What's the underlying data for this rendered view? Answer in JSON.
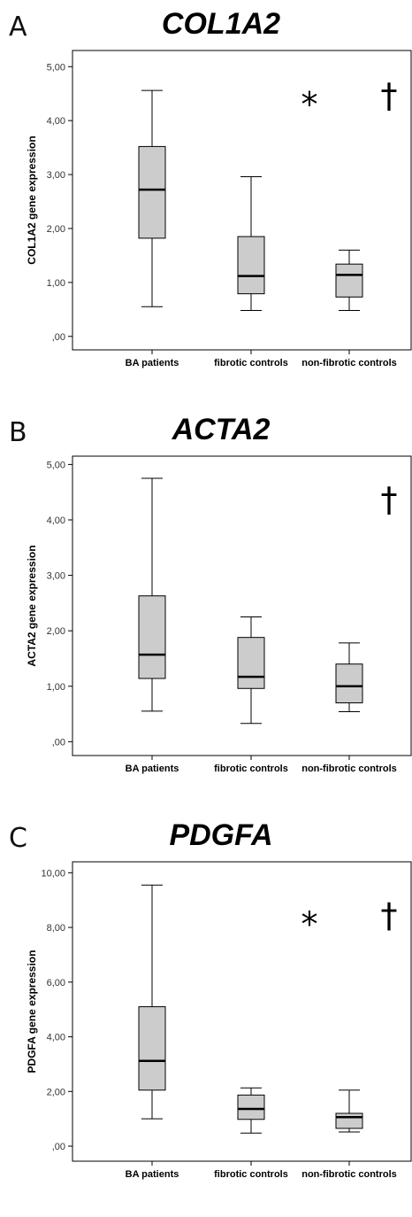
{
  "chart_data": [
    {
      "type": "box",
      "panel_label": "A",
      "title": "COL1A2",
      "ylabel": "COL1A2 gene expression",
      "ylim": [
        -0.25,
        5.3
      ],
      "y_ticks": [
        0,
        1,
        2,
        3,
        4,
        5
      ],
      "y_tick_labels": [
        ",00",
        "1,00",
        "2,00",
        "3,00",
        "4,00",
        "5,00"
      ],
      "categories": [
        "BA patients",
        "fibrotic controls",
        "non-fibrotic controls"
      ],
      "boxes": [
        {
          "category": "BA patients",
          "min": 0.55,
          "q1": 1.82,
          "median": 2.72,
          "q3": 3.52,
          "max": 4.56
        },
        {
          "category": "fibrotic controls",
          "min": 0.48,
          "q1": 0.79,
          "median": 1.12,
          "q3": 1.85,
          "max": 2.96
        },
        {
          "category": "non-fibrotic controls",
          "min": 0.48,
          "q1": 0.73,
          "median": 1.14,
          "q3": 1.34,
          "max": 1.6
        }
      ],
      "annotations": [
        {
          "text": "*",
          "x_category": 2,
          "offset": -0.45,
          "y": 4.45
        },
        {
          "text": "†",
          "x_category": 2,
          "offset": 0.45,
          "y": 4.45
        }
      ]
    },
    {
      "type": "box",
      "panel_label": "B",
      "title": "ACTA2",
      "ylabel": "ACTA2 gene expression",
      "ylim": [
        -0.25,
        5.15
      ],
      "y_ticks": [
        0,
        1,
        2,
        3,
        4,
        5
      ],
      "y_tick_labels": [
        ",00",
        "1,00",
        "2,00",
        "3,00",
        "4,00",
        "5,00"
      ],
      "categories": [
        "BA patients",
        "fibrotic controls",
        "non-fibrotic controls"
      ],
      "boxes": [
        {
          "category": "BA patients",
          "min": 0.55,
          "q1": 1.14,
          "median": 1.57,
          "q3": 2.63,
          "max": 4.75
        },
        {
          "category": "fibrotic controls",
          "min": 0.33,
          "q1": 0.96,
          "median": 1.17,
          "q3": 1.88,
          "max": 2.25
        },
        {
          "category": "non-fibrotic controls",
          "min": 0.54,
          "q1": 0.7,
          "median": 1.0,
          "q3": 1.4,
          "max": 1.78
        }
      ],
      "annotations": [
        {
          "text": "†",
          "x_category": 2,
          "offset": 0.45,
          "y": 4.35
        }
      ]
    },
    {
      "type": "box",
      "panel_label": "C",
      "title": "PDGFA",
      "ylabel": "PDGFA gene expression",
      "ylim": [
        -0.55,
        10.4
      ],
      "y_ticks": [
        0,
        2,
        4,
        6,
        8,
        10
      ],
      "y_tick_labels": [
        ",00",
        "2,00",
        "4,00",
        "6,00",
        "8,00",
        "10,00"
      ],
      "categories": [
        "BA patients",
        "fibrotic controls",
        "non-fibrotic controls"
      ],
      "boxes": [
        {
          "category": "BA patients",
          "min": 1.0,
          "q1": 2.05,
          "median": 3.12,
          "q3": 5.1,
          "max": 9.55
        },
        {
          "category": "fibrotic controls",
          "min": 0.48,
          "q1": 0.98,
          "median": 1.36,
          "q3": 1.87,
          "max": 2.13
        },
        {
          "category": "non-fibrotic controls",
          "min": 0.52,
          "q1": 0.65,
          "median": 1.06,
          "q3": 1.2,
          "max": 2.05
        }
      ],
      "annotations": [
        {
          "text": "*",
          "x_category": 2,
          "offset": -0.45,
          "y": 8.4
        },
        {
          "text": "†",
          "x_category": 2,
          "offset": 0.45,
          "y": 8.4
        }
      ]
    }
  ]
}
